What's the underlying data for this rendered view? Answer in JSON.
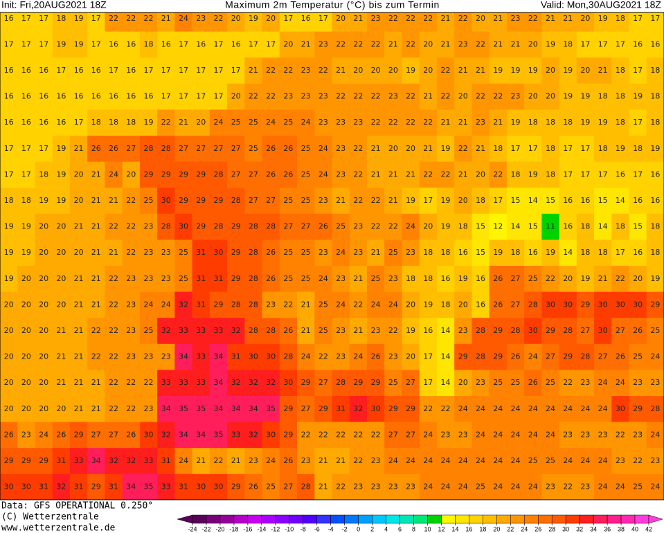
{
  "header": {
    "init": "Init: Fri,20AUG2021 18Z",
    "title": "Maximum 2m Temperatur (°C) bis zum Termin",
    "valid": "Valid: Mon,30AUG2021 18Z"
  },
  "grid": {
    "rows": [
      [
        16,
        17,
        17,
        18,
        19,
        17,
        22,
        22,
        22,
        21,
        24,
        23,
        22,
        20,
        19,
        20,
        17,
        16,
        17,
        20,
        21,
        23,
        22,
        22,
        22,
        21,
        22,
        20,
        21,
        23,
        22,
        21,
        21,
        20,
        19,
        18,
        17,
        17
      ],
      [
        17,
        17,
        17,
        19,
        19,
        17,
        16,
        16,
        18,
        16,
        17,
        16,
        17,
        16,
        17,
        17,
        20,
        21,
        23,
        22,
        22,
        22,
        21,
        22,
        20,
        21,
        23,
        22,
        21,
        21,
        20,
        19,
        18,
        17,
        17,
        17,
        16,
        16
      ],
      [
        16,
        16,
        16,
        17,
        16,
        16,
        17,
        16,
        17,
        17,
        17,
        17,
        17,
        17,
        21,
        22,
        22,
        23,
        22,
        21,
        20,
        20,
        20,
        19,
        20,
        22,
        21,
        21,
        19,
        19,
        19,
        20,
        19,
        20,
        21,
        18,
        17,
        18
      ],
      [
        16,
        16,
        16,
        16,
        16,
        16,
        16,
        16,
        16,
        17,
        17,
        17,
        17,
        20,
        22,
        22,
        23,
        23,
        23,
        22,
        22,
        22,
        23,
        22,
        21,
        22,
        20,
        22,
        22,
        23,
        20,
        20,
        19,
        19,
        18,
        18,
        19,
        18
      ],
      [
        16,
        16,
        16,
        16,
        17,
        18,
        18,
        18,
        19,
        22,
        21,
        20,
        24,
        25,
        25,
        24,
        25,
        24,
        23,
        23,
        23,
        22,
        22,
        22,
        22,
        21,
        21,
        23,
        21,
        19,
        18,
        18,
        18,
        19,
        19,
        18,
        17,
        18
      ],
      [
        17,
        17,
        17,
        19,
        21,
        26,
        26,
        27,
        28,
        28,
        27,
        27,
        27,
        27,
        25,
        26,
        26,
        25,
        24,
        23,
        22,
        21,
        20,
        20,
        21,
        19,
        22,
        21,
        18,
        17,
        17,
        18,
        17,
        17,
        18,
        19,
        18,
        19
      ],
      [
        17,
        17,
        18,
        19,
        20,
        21,
        24,
        20,
        29,
        29,
        29,
        29,
        28,
        27,
        27,
        26,
        26,
        25,
        24,
        23,
        22,
        21,
        21,
        21,
        22,
        22,
        21,
        20,
        22,
        18,
        19,
        18,
        17,
        17,
        17,
        16,
        17,
        16
      ],
      [
        18,
        18,
        19,
        19,
        20,
        21,
        21,
        22,
        25,
        30,
        29,
        29,
        29,
        28,
        27,
        27,
        25,
        25,
        23,
        21,
        22,
        22,
        21,
        19,
        17,
        19,
        20,
        18,
        17,
        15,
        14,
        15,
        16,
        16,
        15,
        14,
        16,
        16
      ],
      [
        19,
        19,
        20,
        20,
        21,
        21,
        22,
        22,
        23,
        28,
        30,
        29,
        28,
        29,
        28,
        28,
        27,
        27,
        26,
        25,
        23,
        22,
        22,
        24,
        20,
        19,
        18,
        15,
        12,
        14,
        15,
        11,
        16,
        18,
        14,
        18,
        15,
        18
      ],
      [
        19,
        19,
        20,
        20,
        20,
        21,
        21,
        22,
        23,
        23,
        25,
        31,
        30,
        29,
        28,
        26,
        25,
        25,
        23,
        24,
        23,
        21,
        25,
        23,
        18,
        18,
        16,
        15,
        19,
        18,
        16,
        19,
        14,
        18,
        18,
        17,
        16,
        18
      ],
      [
        19,
        20,
        20,
        20,
        21,
        21,
        22,
        23,
        23,
        23,
        25,
        31,
        31,
        29,
        28,
        26,
        25,
        25,
        24,
        23,
        21,
        25,
        23,
        18,
        18,
        16,
        19,
        16,
        26,
        27,
        25,
        22,
        20,
        19,
        21,
        22,
        20,
        19
      ],
      [
        20,
        20,
        20,
        20,
        21,
        21,
        22,
        23,
        24,
        24,
        32,
        31,
        29,
        28,
        28,
        23,
        22,
        21,
        25,
        24,
        22,
        24,
        24,
        20,
        19,
        18,
        20,
        16,
        26,
        27,
        28,
        30,
        30,
        29,
        30,
        30,
        30,
        29
      ],
      [
        20,
        20,
        20,
        21,
        21,
        22,
        22,
        23,
        25,
        32,
        33,
        33,
        33,
        32,
        28,
        28,
        26,
        21,
        25,
        23,
        21,
        23,
        22,
        19,
        16,
        14,
        23,
        28,
        29,
        28,
        30,
        29,
        28,
        27,
        30,
        27,
        26,
        25
      ],
      [
        20,
        20,
        20,
        21,
        21,
        22,
        22,
        23,
        23,
        23,
        34,
        33,
        34,
        31,
        30,
        30,
        28,
        24,
        22,
        23,
        24,
        26,
        23,
        20,
        17,
        14,
        29,
        28,
        29,
        26,
        24,
        27,
        29,
        28,
        27,
        26,
        25,
        24
      ],
      [
        20,
        20,
        20,
        21,
        21,
        21,
        22,
        22,
        22,
        33,
        33,
        33,
        34,
        32,
        32,
        32,
        30,
        29,
        27,
        28,
        29,
        29,
        25,
        27,
        17,
        14,
        20,
        23,
        25,
        25,
        26,
        25,
        22,
        23,
        24,
        24,
        23,
        23
      ],
      [
        20,
        20,
        20,
        20,
        21,
        21,
        22,
        22,
        23,
        34,
        35,
        35,
        34,
        34,
        34,
        35,
        29,
        27,
        29,
        31,
        32,
        30,
        29,
        29,
        22,
        22,
        24,
        24,
        24,
        24,
        24,
        24,
        24,
        24,
        24,
        30,
        29,
        28
      ],
      [
        26,
        23,
        24,
        26,
        29,
        27,
        27,
        26,
        30,
        32,
        34,
        34,
        35,
        33,
        32,
        30,
        29,
        22,
        22,
        22,
        22,
        22,
        27,
        27,
        24,
        23,
        23,
        24,
        24,
        24,
        24,
        24,
        23,
        23,
        23,
        22,
        23,
        24
      ],
      [
        29,
        29,
        29,
        31,
        33,
        34,
        32,
        32,
        33,
        31,
        24,
        21,
        22,
        21,
        23,
        24,
        26,
        23,
        21,
        21,
        22,
        23,
        24,
        24,
        24,
        24,
        24,
        24,
        24,
        24,
        25,
        25,
        24,
        24,
        24,
        23,
        22,
        23
      ],
      [
        30,
        30,
        31,
        32,
        31,
        29,
        31,
        34,
        35,
        33,
        31,
        30,
        30,
        29,
        26,
        25,
        27,
        28,
        21,
        22,
        23,
        23,
        23,
        23,
        24,
        24,
        24,
        25,
        24,
        24,
        24,
        23,
        22,
        23,
        24,
        24,
        25,
        24
      ]
    ]
  },
  "colorbar": {
    "ticks": [
      -24,
      -22,
      -20,
      -18,
      -16,
      -14,
      -12,
      -10,
      -8,
      -6,
      -4,
      -2,
      0,
      2,
      4,
      6,
      8,
      10,
      12,
      14,
      16,
      18,
      20,
      22,
      24,
      26,
      28,
      30,
      32,
      34,
      36,
      38,
      40,
      42
    ],
    "colors": [
      "#5a005a",
      "#7a007a",
      "#96009b",
      "#b400c8",
      "#c800f0",
      "#aa00ff",
      "#8c00ff",
      "#6e00ff",
      "#5000ff",
      "#3232ff",
      "#0050ff",
      "#0078ff",
      "#00a0ff",
      "#00c8ff",
      "#00e6e6",
      "#00e6b4",
      "#00e678",
      "#00d200",
      "#fff500",
      "#ffe600",
      "#ffd200",
      "#ffbe00",
      "#ffaa00",
      "#ff9600",
      "#ff8200",
      "#ff6e00",
      "#ff5a00",
      "#ff3c00",
      "#ff1e1e",
      "#ff1e5a",
      "#ff1e8c",
      "#ff28b4",
      "#ff3cdc"
    ]
  },
  "footer": {
    "data": "Data: GFS OPERATIONAL 0.250°",
    "copyright": "(C) Wetterzentrale",
    "url": "www.wetterzentrale.de"
  }
}
